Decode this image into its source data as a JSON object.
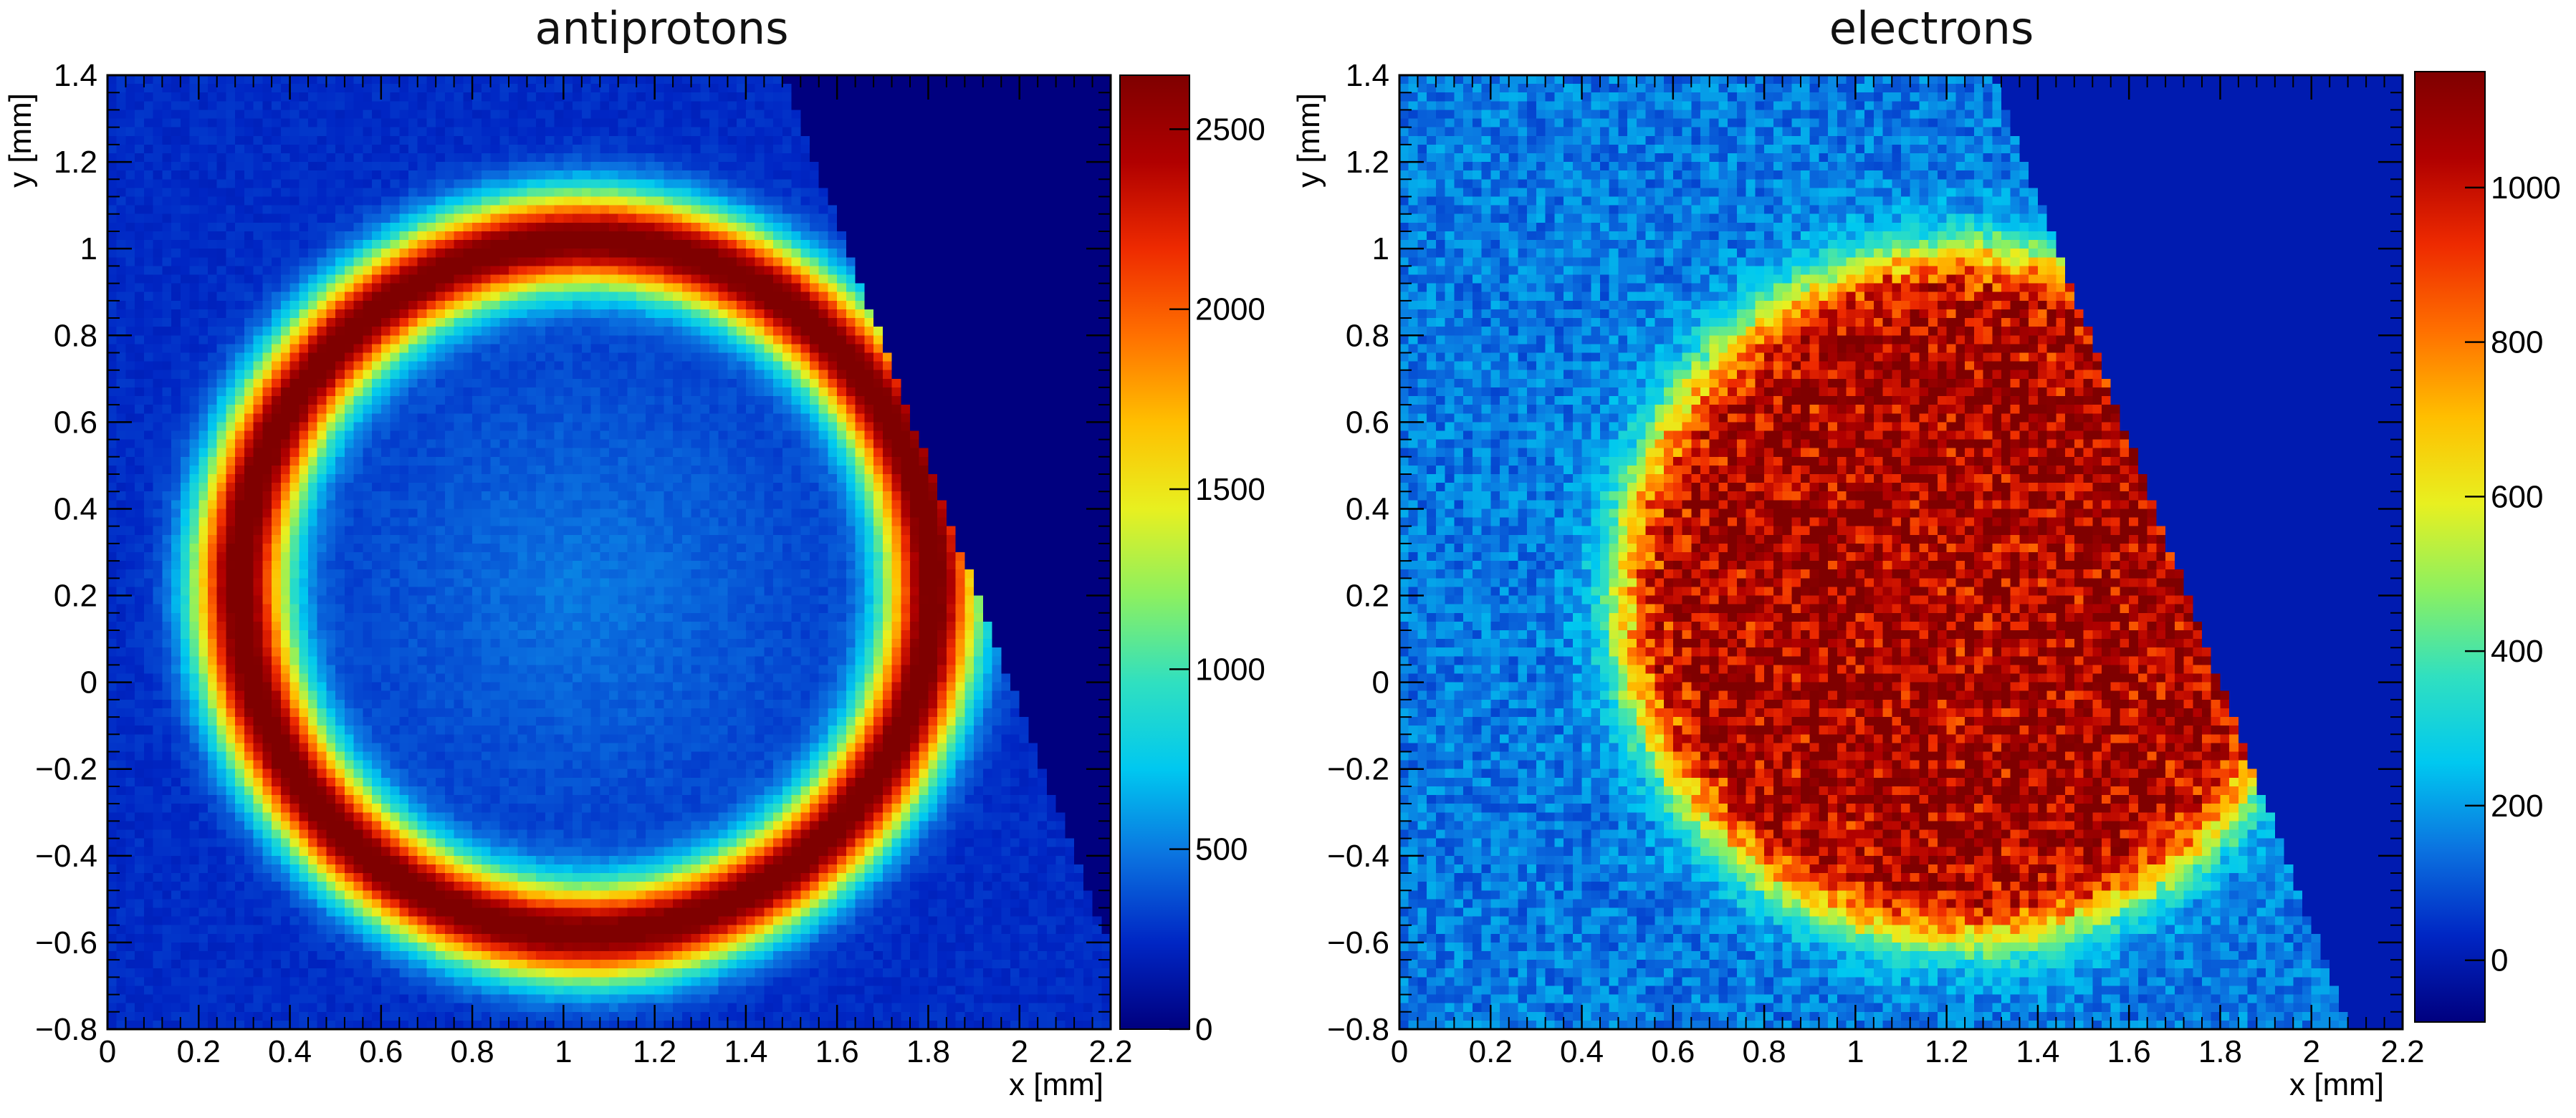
{
  "colors": {
    "background": "#ffffff",
    "frame": "#000000"
  },
  "chart_data": [
    {
      "type": "heatmap",
      "title": "antiprotons",
      "xlabel": "x [mm]",
      "ylabel": "y [mm]",
      "xlim": [
        0,
        2.2
      ],
      "ylim": [
        -0.8,
        1.4
      ],
      "x_ticks": [
        "0",
        "0.2",
        "0.4",
        "0.6",
        "0.8",
        "1",
        "1.2",
        "1.4",
        "1.6",
        "1.8",
        "2",
        "2.2"
      ],
      "y_ticks": [
        "−0.8",
        "−0.6",
        "−0.4",
        "−0.2",
        "0",
        "0.2",
        "0.4",
        "0.6",
        "0.8",
        "1",
        "1.2",
        "1.4"
      ],
      "z_range": [
        0,
        2650
      ],
      "z_ticks": [
        "0",
        "500",
        "1000",
        "1500",
        "2000",
        "2500"
      ],
      "colormap": [
        "#00007f",
        "#0026c4",
        "#0b73e0",
        "#00c8f0",
        "#30e0c0",
        "#8cf060",
        "#e8f020",
        "#ffbf00",
        "#ff7000",
        "#ee2a00",
        "#b00000",
        "#7f0000"
      ],
      "distribution": {
        "shape": "ring",
        "center": [
          1.05,
          0.22
        ],
        "radii": [
          0.76,
          0.8
        ],
        "ring_width": 0.075,
        "peak": 2500,
        "background": 300,
        "cut_line": {
          "x": 1.48,
          "y": 1.4,
          "slope": -2.8
        }
      }
    },
    {
      "type": "heatmap",
      "title": "electrons",
      "xlabel": "x [mm]",
      "ylabel": "y [mm]",
      "xlim": [
        0,
        2.2
      ],
      "ylim": [
        -0.8,
        1.4
      ],
      "x_ticks": [
        "0",
        "0.2",
        "0.4",
        "0.6",
        "0.8",
        "1",
        "1.2",
        "1.4",
        "1.6",
        "1.8",
        "2",
        "2.2"
      ],
      "y_ticks": [
        "−0.8",
        "−0.6",
        "−0.4",
        "−0.2",
        "0",
        "0.2",
        "0.4",
        "0.6",
        "0.8",
        "1",
        "1.2",
        "1.4"
      ],
      "z_range": [
        -80,
        1150
      ],
      "z_ticks": [
        "0",
        "200",
        "400",
        "600",
        "800",
        "1000"
      ],
      "colormap": [
        "#00007f",
        "#0026c4",
        "#0b73e0",
        "#00c8f0",
        "#30e0c0",
        "#8cf060",
        "#e8f020",
        "#ffbf00",
        "#ff7000",
        "#ee2a00",
        "#b00000",
        "#7f0000"
      ],
      "distribution": {
        "shape": "disk",
        "center": [
          1.24,
          0.2
        ],
        "radii": [
          0.75,
          0.79
        ],
        "peak": 930,
        "background": 150,
        "cut_line": {
          "x": 1.3,
          "y": 1.4,
          "slope": -2.8
        }
      }
    }
  ]
}
